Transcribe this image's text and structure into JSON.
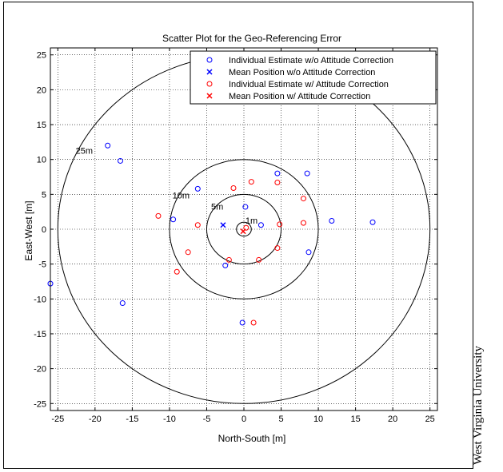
{
  "watermark": "West Virginia University",
  "chart_data": {
    "type": "scatter",
    "title": "Scatter Plot for the Geo-Referencing Error",
    "xlabel": "North-South [m]",
    "ylabel": "East-West [m]",
    "xlim": [
      -26,
      26
    ],
    "ylim": [
      -26,
      26
    ],
    "xticks": [
      -25,
      -20,
      -15,
      -10,
      -5,
      0,
      5,
      10,
      15,
      20,
      25
    ],
    "yticks": [
      -25,
      -20,
      -15,
      -10,
      -5,
      0,
      5,
      10,
      15,
      20,
      25
    ],
    "grid": true,
    "legend_position": "top-right",
    "circles": [
      {
        "radius": 1,
        "label": "1m",
        "label_pos": [
          0.2,
          0.8
        ]
      },
      {
        "radius": 5,
        "label": "5m",
        "label_pos": [
          -4.4,
          2.8
        ]
      },
      {
        "radius": 10,
        "label": "10m",
        "label_pos": [
          -9.6,
          4.4
        ]
      },
      {
        "radius": 25,
        "label": "25m",
        "label_pos": [
          -22.6,
          10.8
        ]
      }
    ],
    "series": [
      {
        "name": "Individual Estimate w/o Attitude Correction",
        "marker": "o",
        "color": "#0000ff",
        "points": [
          [
            -18.3,
            12.0
          ],
          [
            -16.6,
            9.8
          ],
          [
            -6.2,
            5.8
          ],
          [
            -9.5,
            1.4
          ],
          [
            0.2,
            3.2
          ],
          [
            2.3,
            0.6
          ],
          [
            4.5,
            8.0
          ],
          [
            8.5,
            8.0
          ],
          [
            11.8,
            1.2
          ],
          [
            17.3,
            1.0
          ],
          [
            8.7,
            -3.3
          ],
          [
            -2.5,
            -5.2
          ],
          [
            -26.0,
            -7.8
          ],
          [
            -16.3,
            -10.6
          ],
          [
            -0.2,
            -13.4
          ]
        ]
      },
      {
        "name": "Mean Position w/o Attitude Correction",
        "marker": "x",
        "color": "#0000ff",
        "points": [
          [
            -2.8,
            0.6
          ]
        ]
      },
      {
        "name": "Individual Estimate w/ Attitude Correction",
        "marker": "o",
        "color": "#ff0000",
        "points": [
          [
            -11.5,
            1.9
          ],
          [
            -6.2,
            0.6
          ],
          [
            -1.4,
            5.9
          ],
          [
            1.0,
            6.8
          ],
          [
            4.5,
            6.7
          ],
          [
            8.0,
            4.4
          ],
          [
            4.8,
            0.7
          ],
          [
            0.3,
            0.2
          ],
          [
            8.0,
            0.9
          ],
          [
            -7.5,
            -3.3
          ],
          [
            -2.0,
            -4.4
          ],
          [
            2.0,
            -4.4
          ],
          [
            4.5,
            -2.7
          ],
          [
            -9.0,
            -6.1
          ],
          [
            1.3,
            -13.4
          ]
        ]
      },
      {
        "name": "Mean Position w/ Attitude Correction",
        "marker": "x",
        "color": "#ff0000",
        "points": [
          [
            -0.1,
            -0.3
          ]
        ]
      }
    ]
  }
}
